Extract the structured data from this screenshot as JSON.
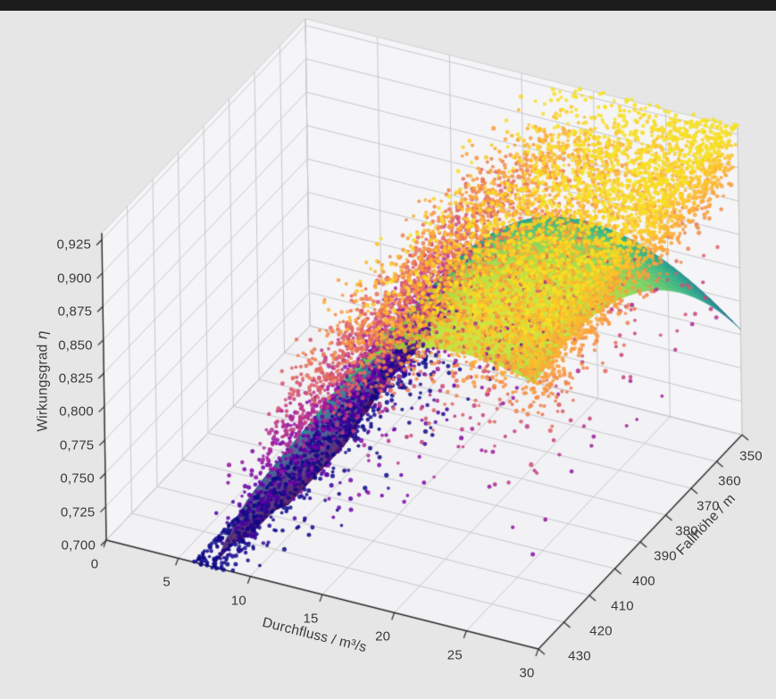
{
  "figure": {
    "top_bar_color": "#1b1b1b",
    "background": "#e6e6e7",
    "pane_color": "#f5f5f7",
    "floor_color": "#f2f2f5",
    "grid_color": "#c9c9cd",
    "pane_edge_color": "#d2d2d6",
    "spine_color": "#2d2d2d",
    "tick_label_color": "#3a3a3a"
  },
  "chart_data": {
    "type": "scatter",
    "subtype": "3d-scatter-cloud-with-fitted-surface",
    "title": "",
    "xlabel": "Durchfluss / m³/s",
    "ylabel": "Fallhöhe / m",
    "zlabel_text": "Wirkungsgrad",
    "zlabel_symbol": "η",
    "xlim": [
      0,
      30
    ],
    "ylim": [
      350,
      430
    ],
    "zlim": [
      0.7,
      0.925
    ],
    "z_box_top": 0.93,
    "y_axis_note": "y axis runs 430 at front-bottom corner to 350 at right corner",
    "decimal_separator": ",",
    "x_ticks": [
      "0",
      "5",
      "10",
      "15",
      "20",
      "25",
      "30"
    ],
    "x_tick_values": [
      0,
      5,
      10,
      15,
      20,
      25,
      30
    ],
    "y_ticks": [
      "350",
      "360",
      "370",
      "380",
      "390",
      "400",
      "410",
      "420",
      "430"
    ],
    "y_tick_values": [
      350,
      360,
      370,
      380,
      390,
      400,
      410,
      420,
      430
    ],
    "z_ticks": [
      "0,700",
      "0,725",
      "0,750",
      "0,775",
      "0,800",
      "0,825",
      "0,850",
      "0,875",
      "0,900",
      "0,925"
    ],
    "z_tick_values": [
      0.7,
      0.725,
      0.75,
      0.775,
      0.8,
      0.825,
      0.85,
      0.875,
      0.9,
      0.925
    ],
    "colormaps": {
      "plasma": [
        "#0d0887",
        "#41049d",
        "#6a00a8",
        "#8f0da4",
        "#b12a90",
        "#cc4778",
        "#e16462",
        "#f2844b",
        "#fca636",
        "#fcce25",
        "#f0f921"
      ],
      "viridis": [
        "#440154",
        "#482878",
        "#3e4989",
        "#31688e",
        "#26828e",
        "#1f9e89",
        "#35b779",
        "#6ece58",
        "#b5de2b",
        "#fde725"
      ]
    },
    "surface": {
      "description": "fitted efficiency surface eta(Q,H), viridis-colored by height, rises from ~0.70 at Q~8 m3/s to a ~0.91 plateau at Q~22-30 m3/s, dips toward H=350 m edge (teal wing) and forks into two prongs at low flow",
      "colormap": "viridis",
      "alpha": 0.87,
      "grid": [
        46,
        26
      ],
      "model": {
        "base": 0.915,
        "aQ": 0.00035,
        "Qopt": 25,
        "c": 0.22,
        "Q0": 5,
        "s": 4.5,
        "aH": 3e-05,
        "Hc": 415,
        "dipA": 0.03,
        "dipQ": 13,
        "dipW": 16,
        "wvA": 0.035,
        "Qmin": 6.8
      }
    },
    "scatter": {
      "description": "dense measurement cloud of efficiency vs flow and head, plasma-colored by efficiency: yellow/orange core 0.85-0.93 at Q 12-30, sparse purple points 0.70-0.82 at low flow and below the surface",
      "colormap": "plasma",
      "point_radius": 2.2,
      "alpha": 0.85,
      "seed": 7,
      "eta_color_range": [
        0.7,
        0.945
      ],
      "eta_clamp": [
        0.699,
        0.932
      ],
      "mean_model": {
        "base": 0.915,
        "aQ": 0.00035,
        "Qopt": 25,
        "c": 0.22,
        "Q0": 5,
        "s": 4.5,
        "tilt": 0.00025
      },
      "groups": [
        {
          "name": "main-cloud",
          "n": 6200,
          "q_dist": "power",
          "q_lo": 7,
          "q_hi": 30,
          "q_pow": 1.7,
          "noise": 0.016,
          "offset": 0.004
        },
        {
          "name": "below-surface-outliers",
          "n": 820,
          "q_dist": "uniform",
          "q_lo": 8,
          "q_hi": 30,
          "below_min": 0.02,
          "below_max": 0.13
        },
        {
          "name": "low-flow-tail",
          "n": 720,
          "q_dist": "low",
          "q_lo": 6,
          "q_hi": 14,
          "noise": 0.02,
          "offset": 0.01
        },
        {
          "name": "upper-halo",
          "n": 300,
          "q_dist": "uniform",
          "q_lo": 12,
          "q_hi": 30,
          "above_min": 0.02,
          "above_max": 0.065
        }
      ]
    }
  }
}
